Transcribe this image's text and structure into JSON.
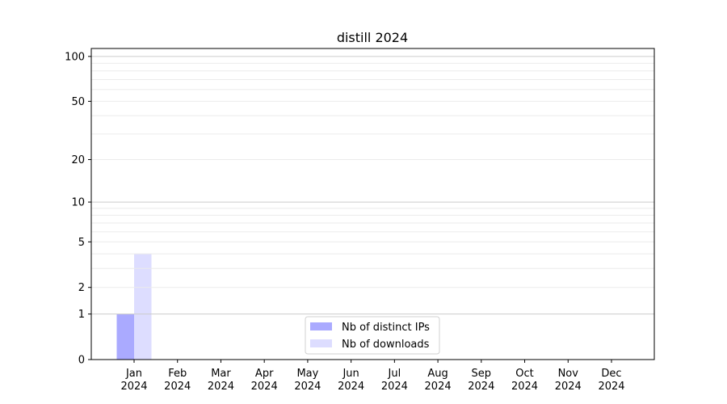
{
  "chart_data": {
    "type": "bar",
    "title": "distill 2024",
    "xlabel": "",
    "ylabel": "",
    "yscale": "log(1+y)",
    "ylim": [
      0,
      113
    ],
    "yticks": [
      0,
      1,
      2,
      5,
      10,
      20,
      50,
      100
    ],
    "ytick_labels": [
      "0",
      "1",
      "2",
      "5",
      "10",
      "20",
      "50",
      "100"
    ],
    "grid": true,
    "legend_position": "bottom-center",
    "categories": [
      "Jan\n2024",
      "Feb\n2024",
      "Mar\n2024",
      "Apr\n2024",
      "May\n2024",
      "Jun\n2024",
      "Jul\n2024",
      "Aug\n2024",
      "Sep\n2024",
      "Oct\n2024",
      "Nov\n2024",
      "Dec\n2024"
    ],
    "series": [
      {
        "name": "Nb of distinct IPs",
        "color": "#aaaaff",
        "values": [
          1,
          0,
          0,
          0,
          0,
          0,
          0,
          0,
          0,
          0,
          0,
          0
        ]
      },
      {
        "name": "Nb of downloads",
        "color": "#ddddff",
        "values": [
          4,
          0,
          0,
          0,
          0,
          0,
          0,
          0,
          0,
          0,
          0,
          0
        ]
      }
    ]
  }
}
